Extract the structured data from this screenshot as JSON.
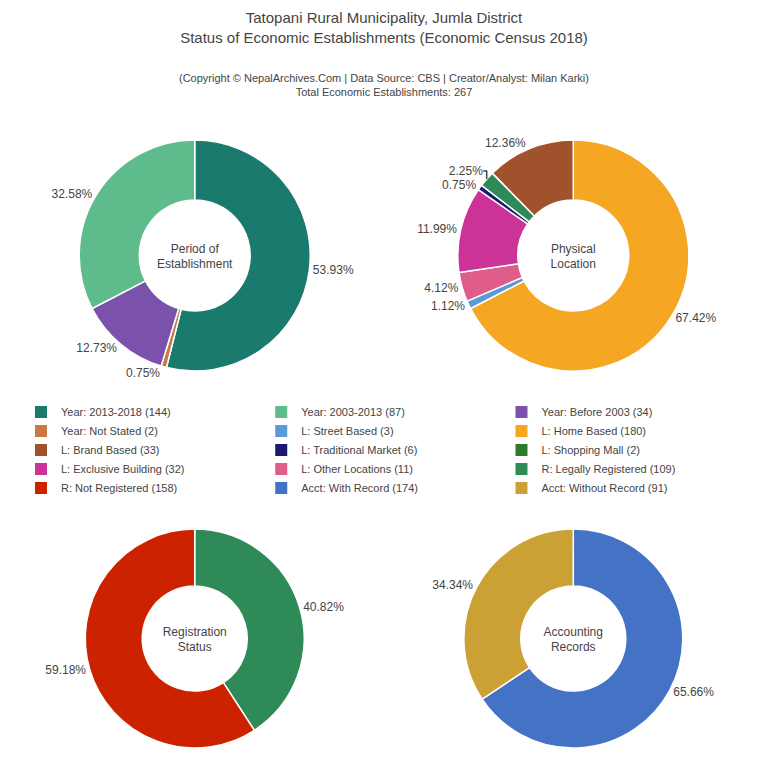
{
  "title": "Tatopani Rural Municipality, Jumla District\nStatus of Economic Establishments (Economic Census 2018)",
  "subtitle": "(Copyright © NepalArchives.Com | Data Source: CBS | Creator/Analyst: Milan Karki)\nTotal Economic Establishments: 267",
  "legend_entries": [
    {
      "name": "Year: 2013-2018 (144)",
      "color": "#1a7a6e"
    },
    {
      "name": "Year: 2003-2013 (87)",
      "color": "#5DBB8C"
    },
    {
      "name": "Year: Before 2003 (34)",
      "color": "#7B52AB"
    },
    {
      "name": "Year: Not Stated (2)",
      "color": "#c87941"
    },
    {
      "name": "L: Street Based (3)",
      "color": "#5B9BD5"
    },
    {
      "name": "L: Home Based (180)",
      "color": "#F5A623"
    },
    {
      "name": "L: Brand Based (33)",
      "color": "#A0522D"
    },
    {
      "name": "L: Traditional Market (6)",
      "color": "#1a1a6e"
    },
    {
      "name": "L: Shopping Mall (2)",
      "color": "#2d7a2d"
    },
    {
      "name": "L: Exclusive Building (32)",
      "color": "#cc3399"
    },
    {
      "name": "L: Other Locations (11)",
      "color": "#E05C8A"
    },
    {
      "name": "R: Legally Registered (109)",
      "color": "#2E8B57"
    },
    {
      "name": "R: Not Registered (158)",
      "color": "#cc2200"
    },
    {
      "name": "Acct: With Record (174)",
      "color": "#4472C4"
    },
    {
      "name": "Acct: Without Record (91)",
      "color": "#CBA135"
    }
  ],
  "chart_data": [
    {
      "type": "pie",
      "title": "Period of\nEstablishment",
      "values": [
        53.93,
        0.75,
        12.73,
        32.58
      ],
      "value_labels": [
        "53.93%",
        "0.75%",
        "12.73%",
        "32.58%"
      ],
      "colors": [
        "#1a7a6e",
        "#c87941",
        "#7B52AB",
        "#5DBB8C"
      ],
      "data_labels": true
    },
    {
      "type": "pie",
      "title": "Physical\nLocation",
      "values": [
        67.42,
        1.12,
        4.12,
        11.99,
        0.75,
        2.25,
        12.36
      ],
      "value_labels": [
        "67.42%",
        "1.12%",
        "4.12%",
        "11.99%",
        "0.75%",
        "2.25%",
        "12.36%"
      ],
      "colors": [
        "#F5A623",
        "#5B9BD5",
        "#E05C8A",
        "#cc3399",
        "#1a1a6e",
        "#2E8B57",
        "#A0522D"
      ],
      "data_labels": true
    },
    {
      "type": "pie",
      "title": "Registration\nStatus",
      "values": [
        40.82,
        59.18
      ],
      "value_labels": [
        "40.82%",
        "59.18%"
      ],
      "colors": [
        "#2E8B57",
        "#cc2200"
      ],
      "data_labels": true
    },
    {
      "type": "pie",
      "title": "Accounting\nRecords",
      "values": [
        65.66,
        34.34
      ],
      "value_labels": [
        "65.66%",
        "34.34%"
      ],
      "colors": [
        "#4472C4",
        "#CBA135"
      ],
      "data_labels": true
    }
  ]
}
